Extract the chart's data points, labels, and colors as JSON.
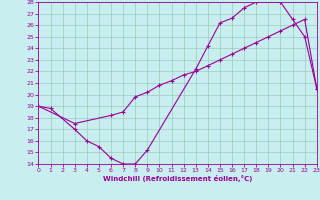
{
  "xlabel": "Windchill (Refroidissement éolien,°C)",
  "bg_color": "#c8eef0",
  "line_color": "#990099",
  "grid_color": "#99ccbb",
  "xlim": [
    0,
    23
  ],
  "ylim": [
    14,
    28
  ],
  "xticks": [
    0,
    1,
    2,
    3,
    4,
    5,
    6,
    7,
    8,
    9,
    10,
    11,
    12,
    13,
    14,
    15,
    16,
    17,
    18,
    19,
    20,
    21,
    22,
    23
  ],
  "yticks": [
    14,
    15,
    16,
    17,
    18,
    19,
    20,
    21,
    22,
    23,
    24,
    25,
    26,
    27,
    28
  ],
  "curve_outer_x": [
    0,
    1,
    3,
    4,
    5,
    6,
    7,
    8,
    9,
    13,
    14,
    15,
    16,
    17,
    18,
    20,
    21,
    22,
    23
  ],
  "curve_outer_y": [
    19,
    18.8,
    17,
    16,
    15.5,
    14.5,
    14,
    14,
    15.2,
    22.2,
    24.2,
    26.2,
    26.6,
    27.5,
    28.0,
    28.0,
    26.5,
    25.0,
    20.5
  ],
  "curve_diag_x": [
    0,
    3,
    6,
    7,
    8,
    9,
    10,
    11,
    12,
    13,
    14,
    15,
    16,
    17,
    18,
    19,
    20,
    21,
    22,
    23
  ],
  "curve_diag_y": [
    19,
    17.5,
    18.2,
    18.5,
    19.8,
    20.2,
    20.8,
    21.2,
    21.7,
    22.0,
    22.5,
    23.0,
    23.5,
    24.0,
    24.5,
    25.0,
    25.5,
    26.0,
    26.5,
    20.5
  ],
  "marker": "+"
}
